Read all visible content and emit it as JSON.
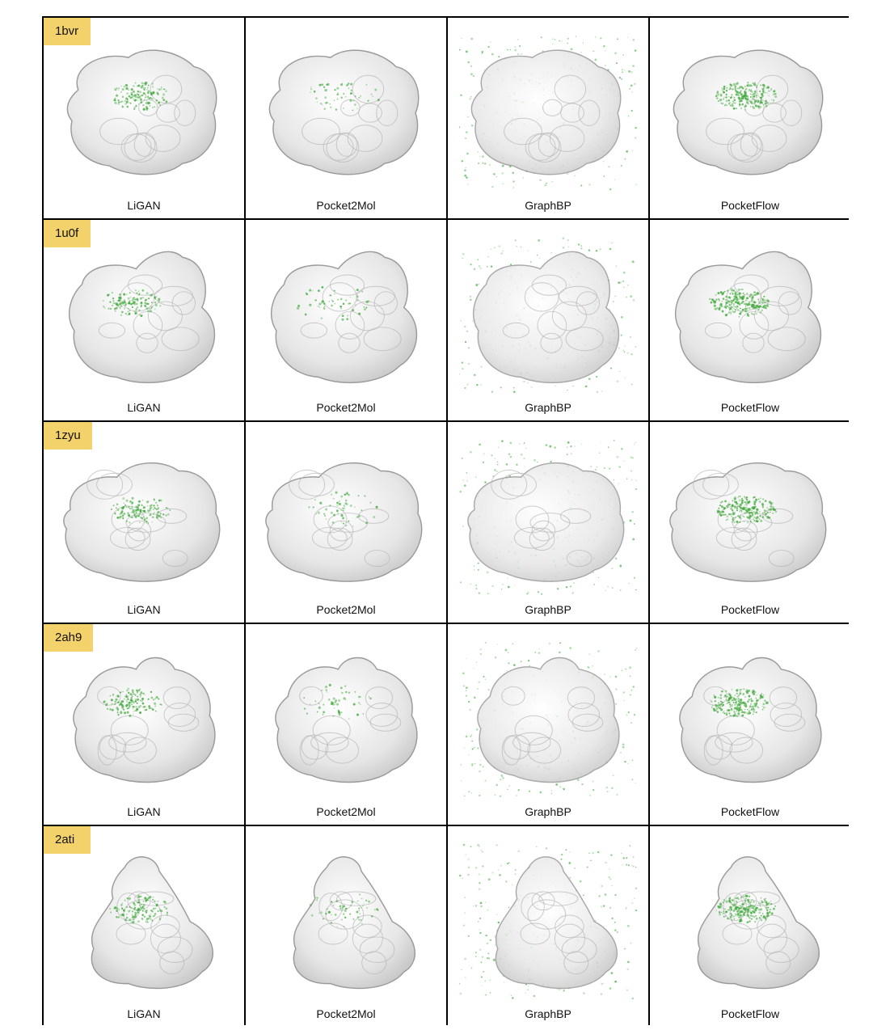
{
  "rows": [
    {
      "id": "1bvr",
      "shape": 0
    },
    {
      "id": "1u0f",
      "shape": 1
    },
    {
      "id": "1zyu",
      "shape": 2
    },
    {
      "id": "2ah9",
      "shape": 3
    },
    {
      "id": "2ati",
      "shape": 4
    }
  ],
  "methods": [
    {
      "name": "LiGAN",
      "cloud": "focused"
    },
    {
      "name": "Pocket2Mol",
      "cloud": "sparse"
    },
    {
      "name": "GraphBP",
      "cloud": "diffuse"
    },
    {
      "name": "PocketFlow",
      "cloud": "dense"
    }
  ],
  "colors": {
    "tag_background": "#f3d26b",
    "ligand_density": "#3fa83a",
    "surface": "#e6e6e6",
    "outline": "#9a9a9a"
  }
}
